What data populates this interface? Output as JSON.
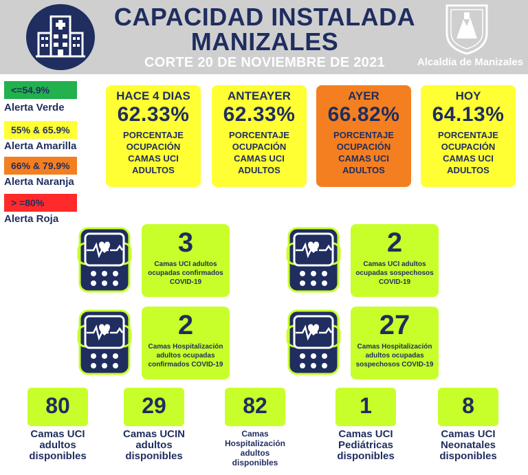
{
  "header": {
    "title_line1": "CAPACIDAD INSTALADA",
    "title_line2": "MANIZALES",
    "cut_date": "CORTE 20 DE NOVIEMBRE  DE 2021",
    "logo_caption": "Alcaldía de Manizales"
  },
  "legend": [
    {
      "range": "<=54.9%",
      "label": "Alerta Verde",
      "color": "#22b14c"
    },
    {
      "range": "55% & 65.9%",
      "label": "Alerta Amarilla",
      "color": "#ffff33"
    },
    {
      "range": "66% & 79.9%",
      "label": "Alerta Naranja",
      "color": "#f47f20"
    },
    {
      "range": "> =80%",
      "label": "Alerta Roja",
      "color": "#ff2a2a"
    }
  ],
  "days": [
    {
      "name": "HACE 4 DIAS",
      "pct": "62.33%",
      "desc1": "PORCENTAJE",
      "desc2": "OCUPACIÓN",
      "desc3": "CAMAS UCI",
      "desc4": "ADULTOS",
      "color": "#ffff33"
    },
    {
      "name": "ANTEAYER",
      "pct": "62.33%",
      "desc1": "PORCENTAJE",
      "desc2": "OCUPACIÓN",
      "desc3": "CAMAS UCI",
      "desc4": "ADULTOS",
      "color": "#ffff33"
    },
    {
      "name": "AYER",
      "pct": "66.82%",
      "desc1": "PORCENTAJE",
      "desc2": "OCUPACIÓN",
      "desc3": "CAMAS UCI",
      "desc4": "ADULTOS",
      "color": "#f47f20"
    },
    {
      "name": "HOY",
      "pct": "64.13%",
      "desc1": "PORCENTAJE",
      "desc2": "OCUPACIÓN",
      "desc3": "CAMAS UCI",
      "desc4": "ADULTOS",
      "color": "#ffff33"
    }
  ],
  "stats": [
    {
      "value": "3",
      "line1": "Camas UCI adultos",
      "line2": "ocupadas confirmados",
      "line3": "COVID-19"
    },
    {
      "value": "2",
      "line1": "Camas UCI adultos",
      "line2": "ocupadas sospechosos",
      "line3": "COVID-19"
    },
    {
      "value": "2",
      "line1": "Camas  Hospitalización",
      "line2": "adultos ocupadas",
      "line3": "confirmados COVID-19"
    },
    {
      "value": "27",
      "line1": "Camas  Hospitalización",
      "line2": "adultos ocupadas",
      "line3": "sospechosos COVID-19"
    }
  ],
  "available": [
    {
      "value": "80",
      "line1": "Camas UCI",
      "line2": "adultos",
      "line3": "disponibles",
      "line4": ""
    },
    {
      "value": "29",
      "line1": "Camas UCIN",
      "line2": "adultos",
      "line3": "disponibles",
      "line4": ""
    },
    {
      "value": "82",
      "line1": "Camas",
      "line2": "Hospitalización",
      "line3": "adultos",
      "line4": "disponibles"
    },
    {
      "value": "1",
      "line1": "Camas  UCI",
      "line2": "Pediátricas",
      "line3": "disponibles",
      "line4": ""
    },
    {
      "value": "8",
      "line1": "Camas  UCI",
      "line2": "Neonatales",
      "line3": "disponibles",
      "line4": ""
    }
  ],
  "icons": {
    "header": "hospital-building-icon",
    "logo": "city-shield-icon",
    "monitor": "heart-monitor-icon"
  }
}
